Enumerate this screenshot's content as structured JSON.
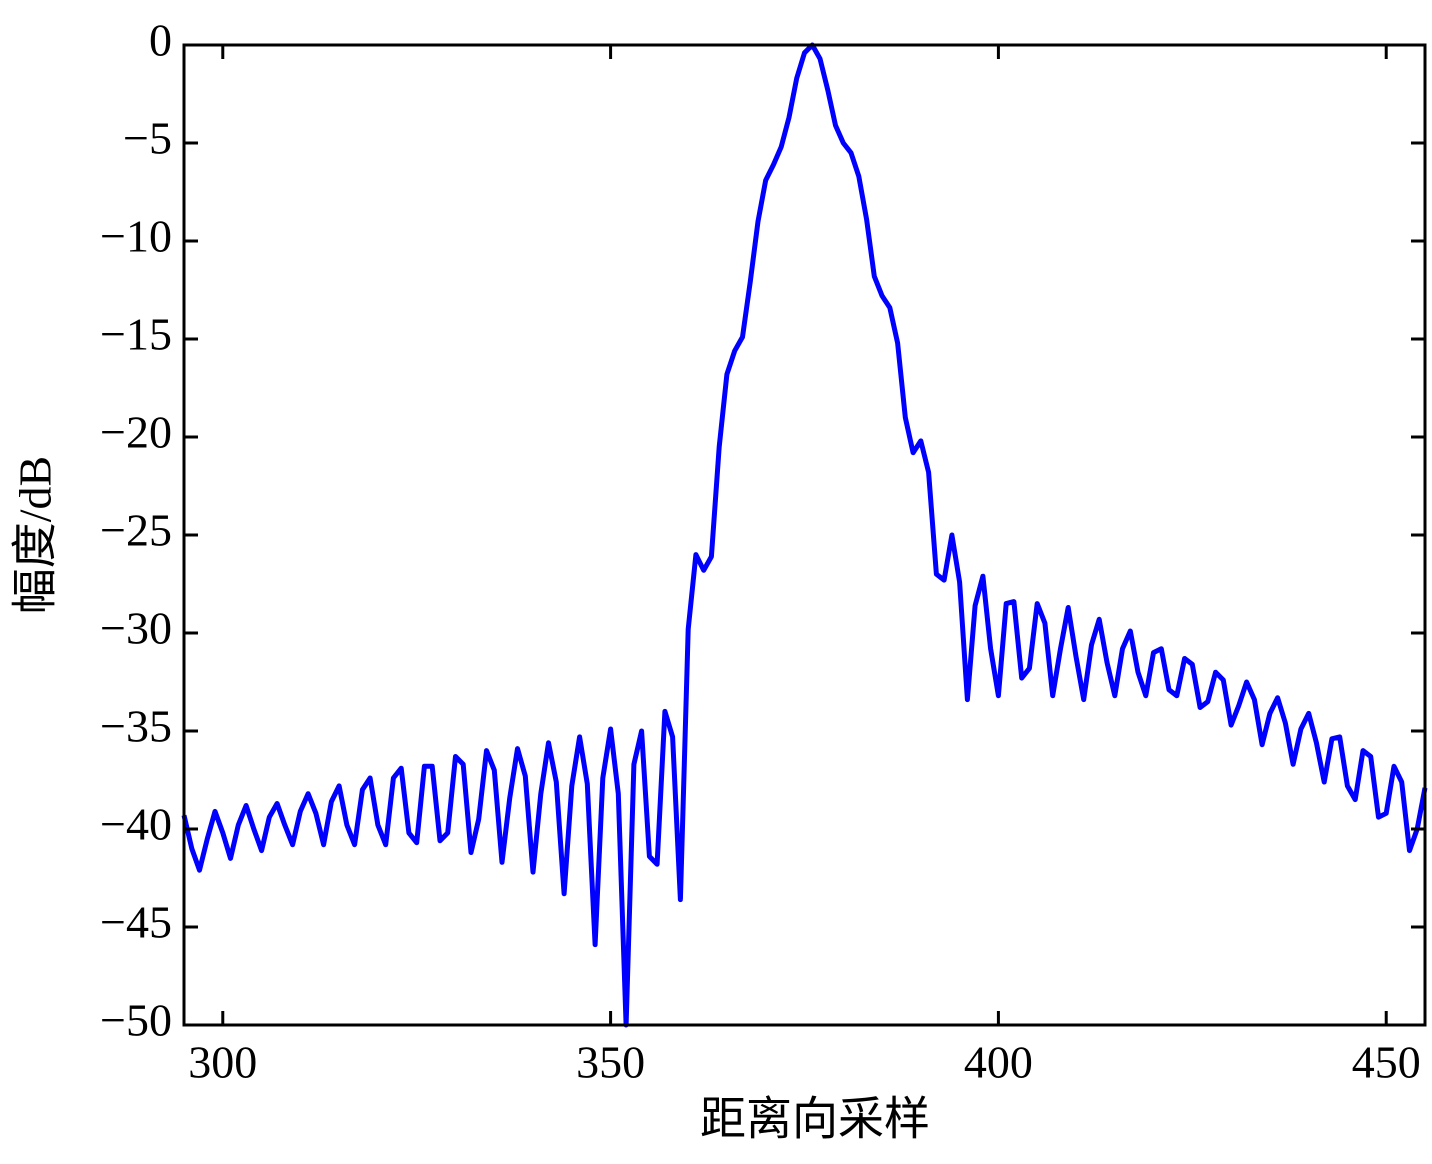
{
  "chart_data": {
    "type": "line",
    "x_label": "距离向采样",
    "y_label": "幅度/dB",
    "xlim": [
      295,
      455
    ],
    "ylim": [
      -50,
      0
    ],
    "xticks": [
      300,
      350,
      400,
      450
    ],
    "yticks": [
      0,
      {
        "value": -5,
        "label": "−5"
      },
      {
        "value": -10,
        "label": "−10"
      },
      {
        "value": -15,
        "label": "−15"
      },
      {
        "value": -20,
        "label": "−20"
      },
      {
        "value": -25,
        "label": "−25"
      },
      {
        "value": -30,
        "label": "−30"
      },
      {
        "value": -35,
        "label": "−35"
      },
      {
        "value": -40,
        "label": "−40"
      },
      {
        "value": -45,
        "label": "−45"
      },
      {
        "value": -50,
        "label": "−50"
      }
    ],
    "grid": false,
    "series": [
      {
        "color": "#0000ff",
        "x": [
          295,
          296,
          297,
          298,
          299,
          300,
          301,
          302,
          303,
          304,
          305,
          306,
          307,
          308,
          309,
          310,
          311,
          312,
          313,
          314,
          315,
          316,
          317,
          318,
          319,
          320,
          321,
          322,
          323,
          324,
          325,
          326,
          327,
          328,
          329,
          330,
          331,
          332,
          333,
          334,
          335,
          336,
          337,
          338,
          339,
          340,
          341,
          342,
          343,
          344,
          345,
          346,
          347,
          348,
          349,
          350,
          351,
          352,
          353,
          354,
          355,
          356,
          357,
          358,
          359,
          360,
          361,
          362,
          363,
          364,
          365,
          366,
          367,
          368,
          369,
          370,
          371,
          372,
          373,
          374,
          375,
          376,
          377,
          378,
          379,
          380,
          381,
          382,
          383,
          384,
          385,
          386,
          387,
          388,
          389,
          390,
          391,
          392,
          393,
          394,
          395,
          396,
          397,
          398,
          399,
          400,
          401,
          402,
          403,
          404,
          405,
          406,
          407,
          408,
          409,
          410,
          411,
          412,
          413,
          414,
          415,
          416,
          417,
          418,
          419,
          420,
          421,
          422,
          423,
          424,
          425,
          426,
          427,
          428,
          429,
          430,
          431,
          432,
          433,
          434,
          435,
          436,
          437,
          438,
          439,
          440,
          441,
          442,
          443,
          444,
          445,
          446,
          447,
          448,
          449,
          450,
          451,
          452,
          453,
          454,
          455
        ],
        "values": [
          -39.3,
          -41,
          -42.1,
          -40.5,
          -39.1,
          -40.2,
          -41.5,
          -39.8,
          -38.8,
          -40,
          -41.1,
          -39.4,
          -38.7,
          -39.8,
          -40.8,
          -39.1,
          -38.2,
          -39.2,
          -40.8,
          -38.6,
          -37.8,
          -39.8,
          -40.8,
          -38,
          -37.4,
          -39.8,
          -40.8,
          -37.4,
          -36.9,
          -40.2,
          -40.7,
          -36.8,
          -36.8,
          -40.6,
          -40.2,
          -36.3,
          -36.7,
          -41.2,
          -39.5,
          -36,
          -37,
          -41.7,
          -38.4,
          -35.9,
          -37.3,
          -42.2,
          -38.2,
          -35.6,
          -37.6,
          -43.3,
          -37.8,
          -35.3,
          -37.7,
          -45.9,
          -37.4,
          -34.9,
          -38.2,
          -50,
          -36.7,
          -35,
          -41.4,
          -41.8,
          -34,
          -35.3,
          -43.6,
          -29.8,
          -26,
          -26.8,
          -26.1,
          -20.5,
          -16.8,
          -15.6,
          -14.9,
          -12.1,
          -9,
          -6.9,
          -6.1,
          -5.2,
          -3.7,
          -1.7,
          -0.4,
          0,
          -0.7,
          -2.3,
          -4.1,
          -5,
          -5.5,
          -6.7,
          -8.9,
          -11.8,
          -12.8,
          -13.4,
          -15.2,
          -19,
          -20.8,
          -20.2,
          -21.8,
          -27,
          -27.3,
          -25,
          -27.4,
          -33.4,
          -28.6,
          -27.1,
          -30.8,
          -33.2,
          -28.5,
          -28.4,
          -32.3,
          -31.8,
          -28.5,
          -29.5,
          -33.2,
          -30.8,
          -28.7,
          -31.2,
          -33.4,
          -30.6,
          -29.3,
          -31.5,
          -33.2,
          -30.8,
          -29.9,
          -32,
          -33.2,
          -31,
          -30.8,
          -32.9,
          -33.2,
          -31.3,
          -31.6,
          -33.8,
          -33.5,
          -32,
          -32.4,
          -34.7,
          -33.7,
          -32.5,
          -33.4,
          -35.7,
          -34.1,
          -33.3,
          -34.6,
          -36.7,
          -34.9,
          -34.1,
          -35.6,
          -37.6,
          -35.4,
          -35.3,
          -37.8,
          -38.5,
          -36,
          -36.3,
          -39.4,
          -39.2,
          -36.8,
          -37.6,
          -41.1,
          -40,
          -37.9
        ]
      }
    ]
  }
}
